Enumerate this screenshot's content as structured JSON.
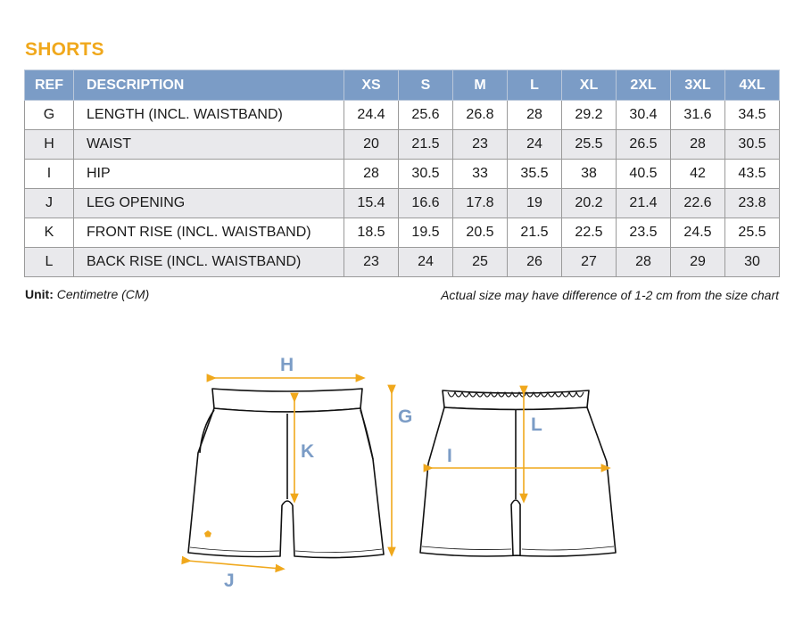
{
  "title": "SHORTS",
  "table": {
    "headers": [
      "REF",
      "DESCRIPTION",
      "XS",
      "S",
      "M",
      "L",
      "XL",
      "2XL",
      "3XL",
      "4XL"
    ],
    "rows": [
      {
        "ref": "G",
        "desc": "LENGTH (INCL. WAISTBAND)",
        "values": [
          "24.4",
          "25.6",
          "26.8",
          "28",
          "29.2",
          "30.4",
          "31.6",
          "34.5"
        ]
      },
      {
        "ref": "H",
        "desc": "WAIST",
        "values": [
          "20",
          "21.5",
          "23",
          "24",
          "25.5",
          "26.5",
          "28",
          "30.5"
        ]
      },
      {
        "ref": "I",
        "desc": "HIP",
        "values": [
          "28",
          "30.5",
          "33",
          "35.5",
          "38",
          "40.5",
          "42",
          "43.5"
        ]
      },
      {
        "ref": "J",
        "desc": "LEG OPENING",
        "values": [
          "15.4",
          "16.6",
          "17.8",
          "19",
          "20.2",
          "21.4",
          "22.6",
          "23.8"
        ]
      },
      {
        "ref": "K",
        "desc": "FRONT RISE (INCL. WAISTBAND)",
        "values": [
          "18.5",
          "19.5",
          "20.5",
          "21.5",
          "22.5",
          "23.5",
          "24.5",
          "25.5"
        ]
      },
      {
        "ref": "L",
        "desc": "BACK RISE (INCL. WAISTBAND)",
        "values": [
          "23",
          "24",
          "25",
          "26",
          "27",
          "28",
          "29",
          "30"
        ]
      }
    ]
  },
  "unit": {
    "label": "Unit:",
    "value": "Centimetre (CM)"
  },
  "disclaimer": "Actual size may have difference of 1-2 cm from the size chart",
  "diagram": {
    "labels": {
      "H": "H",
      "K": "K",
      "J": "J",
      "G": "G",
      "L": "L",
      "I": "I"
    },
    "measure_color": "#f0a81c",
    "label_color": "#7b9cc6"
  }
}
